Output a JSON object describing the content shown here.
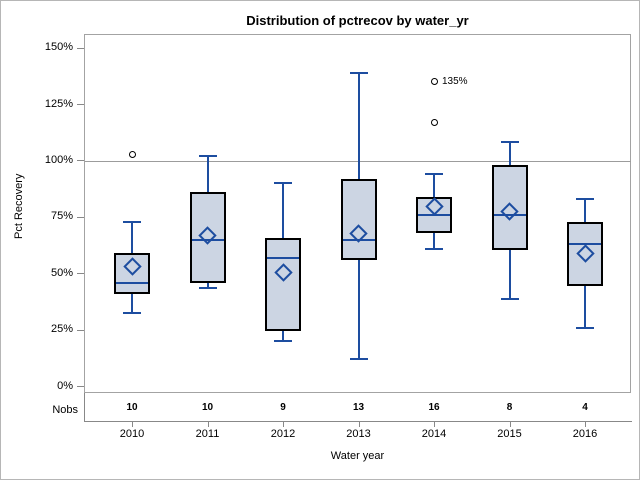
{
  "chart_data": {
    "type": "boxplot",
    "title": "Distribution of pctrecov by water_yr",
    "xlabel": "Water year",
    "ylabel": "Pct Recovery",
    "nobs_row_label": "Nobs",
    "ylim": [
      0,
      157
    ],
    "ytick_values": [
      0,
      25,
      50,
      75,
      100,
      125,
      150
    ],
    "ytick_labels": [
      "0%",
      "25%",
      "50%",
      "75%",
      "100%",
      "125%",
      "150%"
    ],
    "reference_line_value": 100,
    "grid": "off",
    "legend": "none",
    "categories": [
      "2010",
      "2011",
      "2012",
      "2013",
      "2014",
      "2015",
      "2016"
    ],
    "nobs": [
      10,
      10,
      9,
      13,
      16,
      8,
      4
    ],
    "series": [
      {
        "year": "2010",
        "nobs": 10,
        "whisker_low": 32.5,
        "q1": 41,
        "median": 46,
        "q3": 59,
        "whisker_high": 73,
        "mean": 53,
        "outliers": [
          {
            "value": 103,
            "label": ""
          }
        ]
      },
      {
        "year": "2011",
        "nobs": 10,
        "whisker_low": 43.5,
        "q1": 46,
        "median": 65,
        "q3": 86,
        "whisker_high": 102,
        "mean": 67,
        "outliers": []
      },
      {
        "year": "2012",
        "nobs": 9,
        "whisker_low": 20,
        "q1": 24.5,
        "median": 57,
        "q3": 66,
        "whisker_high": 90,
        "mean": 50.5,
        "outliers": []
      },
      {
        "year": "2013",
        "nobs": 13,
        "whisker_low": 12,
        "q1": 56,
        "median": 65,
        "q3": 92,
        "whisker_high": 139,
        "mean": 68,
        "outliers": []
      },
      {
        "year": "2014",
        "nobs": 16,
        "whisker_low": 61,
        "q1": 68,
        "median": 76,
        "q3": 84,
        "whisker_high": 94,
        "mean": 80,
        "outliers": [
          {
            "value": 117,
            "label": ""
          },
          {
            "value": 135,
            "label": "135%"
          }
        ]
      },
      {
        "year": "2015",
        "nobs": 8,
        "whisker_low": 39,
        "q1": 60.5,
        "median": 76,
        "q3": 98,
        "whisker_high": 108.5,
        "mean": 77.5,
        "outliers": []
      },
      {
        "year": "2016",
        "nobs": 4,
        "whisker_low": 26,
        "q1": 44.5,
        "median": 63,
        "q3": 73,
        "whisker_high": 83,
        "mean": 59,
        "outliers": []
      }
    ],
    "colors": {
      "box_fill": "#ccd5e3",
      "box_border": "#000000",
      "line_blue": "#1d4da0",
      "outlier": "#000000",
      "axis_gray": "#888888",
      "frame_gray": "#a3a3a3",
      "reference_line_gray": "#9c9c9c",
      "background": "#ffffff",
      "figure_border": "#b6b6b6",
      "text": "#000000"
    }
  }
}
